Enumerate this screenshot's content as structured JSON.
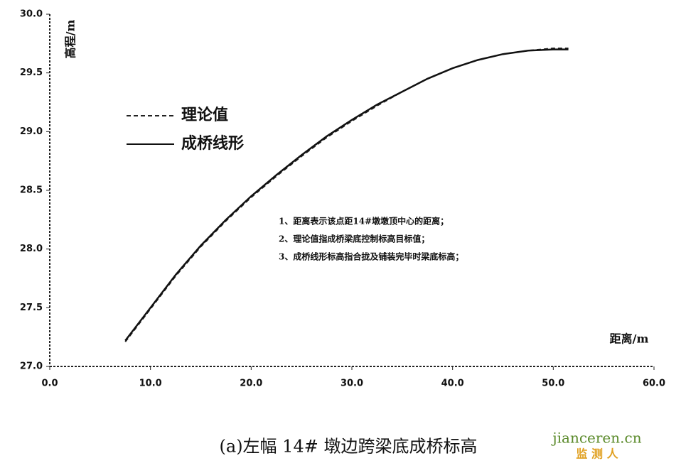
{
  "chart_data": {
    "type": "line",
    "y_label": "高程/m",
    "x_label": "距离/m",
    "x": [
      7.5,
      10,
      12.5,
      15,
      17.5,
      20,
      22.5,
      25,
      27.5,
      30,
      32.5,
      35,
      37.5,
      40,
      42.5,
      45,
      47.5,
      50,
      51.5
    ],
    "series": [
      {
        "name": "理论值",
        "color": "#222",
        "dash": true,
        "values": [
          27.21,
          27.49,
          27.77,
          28.02,
          28.24,
          28.44,
          28.62,
          28.79,
          28.95,
          29.09,
          29.22,
          29.34,
          29.45,
          29.54,
          29.61,
          29.66,
          29.69,
          29.71,
          29.71
        ]
      },
      {
        "name": "成桥线形",
        "color": "#111",
        "dash": false,
        "values": [
          27.22,
          27.5,
          27.78,
          28.03,
          28.25,
          28.45,
          28.63,
          28.8,
          28.96,
          29.1,
          29.23,
          29.34,
          29.45,
          29.54,
          29.61,
          29.66,
          29.69,
          29.7,
          29.7
        ]
      }
    ],
    "xlim": [
      0,
      60
    ],
    "ylim": [
      27,
      30
    ],
    "xticks": [
      {
        "value": 0,
        "label": "0.0"
      },
      {
        "value": 10,
        "label": "10.0"
      },
      {
        "value": 20,
        "label": "20.0"
      },
      {
        "value": 30,
        "label": "30.0"
      },
      {
        "value": 40,
        "label": "40.0"
      },
      {
        "value": 50,
        "label": "50.0"
      },
      {
        "value": 60,
        "label": "60.0"
      }
    ],
    "yticks": [
      {
        "value": 27,
        "label": "27.0"
      },
      {
        "value": 27.5,
        "label": "27.5"
      },
      {
        "value": 28,
        "label": "28.0"
      },
      {
        "value": 28.5,
        "label": "28.5"
      },
      {
        "value": 29,
        "label": "29.0"
      },
      {
        "value": 29.5,
        "label": "29.5"
      },
      {
        "value": 30,
        "label": "30.0"
      }
    ],
    "notes": [
      "1、距离表示该点距14#墩墩顶中心的距离；",
      "2、理论值指成桥梁底控制标高目标值；",
      "3、成桥线形标高指合拢及铺装完毕时梁底标高；"
    ],
    "caption": "(a)左幅 14# 墩边跨梁底成桥标高",
    "watermark": [
      "jianceren.cn",
      "监 测 人"
    ]
  }
}
